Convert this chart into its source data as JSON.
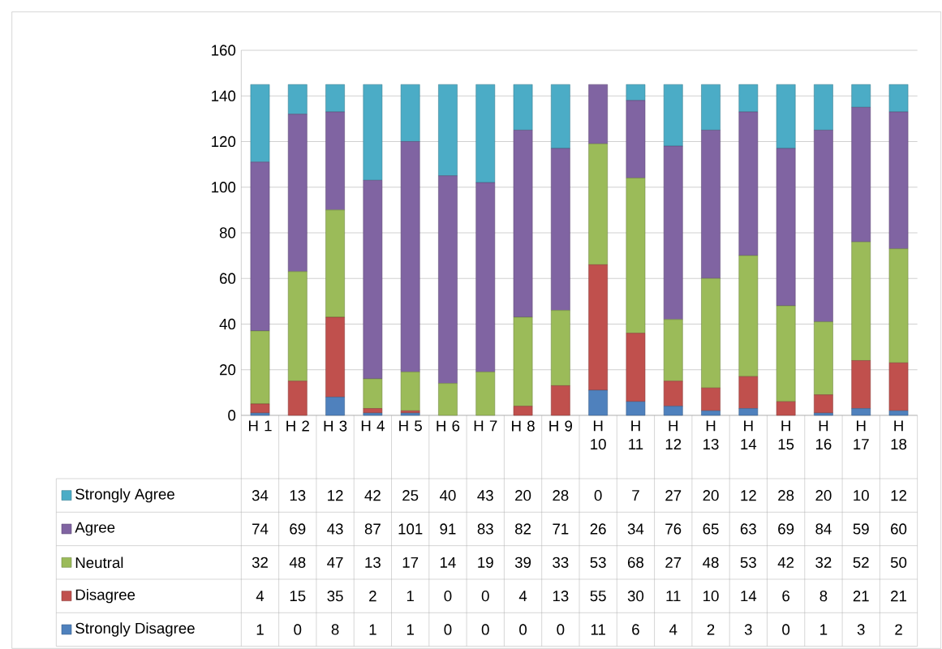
{
  "chart_data": {
    "type": "bar",
    "stacked": true,
    "categories": [
      "H 1",
      "H 2",
      "H 3",
      "H 4",
      "H 5",
      "H 6",
      "H 7",
      "H 8",
      "H 9",
      "H 10",
      "H 11",
      "H 12",
      "H 13",
      "H 14",
      "H 15",
      "H 16",
      "H 17",
      "H 18"
    ],
    "series": [
      {
        "name": "Strongly Disagree",
        "color": "#4f81bd",
        "values": [
          1,
          0,
          8,
          1,
          1,
          0,
          0,
          0,
          0,
          11,
          6,
          4,
          2,
          3,
          0,
          1,
          3,
          2
        ]
      },
      {
        "name": "Disagree",
        "color": "#c0504d",
        "values": [
          4,
          15,
          35,
          2,
          1,
          0,
          0,
          4,
          13,
          55,
          30,
          11,
          10,
          14,
          6,
          8,
          21,
          21
        ]
      },
      {
        "name": "Neutral",
        "color": "#9bbb59",
        "values": [
          32,
          48,
          47,
          13,
          17,
          14,
          19,
          39,
          33,
          53,
          68,
          27,
          48,
          53,
          42,
          32,
          52,
          50
        ]
      },
      {
        "name": "Agree",
        "color": "#8064a2",
        "values": [
          74,
          69,
          43,
          87,
          101,
          91,
          83,
          82,
          71,
          26,
          34,
          76,
          65,
          63,
          69,
          84,
          59,
          60
        ]
      },
      {
        "name": "Strongly Agree",
        "color": "#4bacc6",
        "values": [
          34,
          13,
          12,
          42,
          25,
          40,
          43,
          20,
          28,
          0,
          7,
          27,
          20,
          12,
          28,
          20,
          10,
          12
        ]
      }
    ],
    "ylim": [
      0,
      160
    ],
    "yticks": [
      0,
      20,
      40,
      60,
      80,
      100,
      120,
      140,
      160
    ],
    "grid": "y",
    "data_labels": true,
    "legend": "bottom left"
  }
}
